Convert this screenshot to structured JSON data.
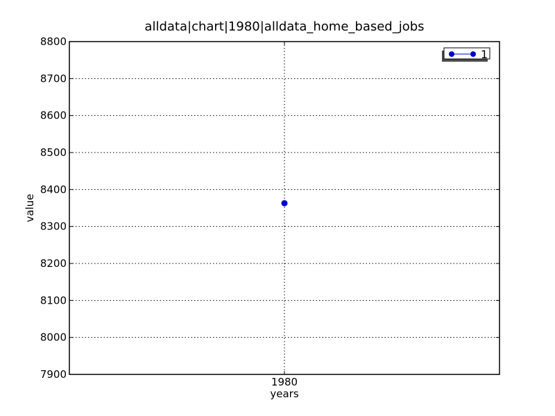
{
  "chart_data": {
    "type": "line",
    "title": "alldata|chart|1980|alldata_home_based_jobs",
    "xlabel": "years",
    "ylabel": "value",
    "x_ticks": [
      "1980"
    ],
    "ylim": [
      7900,
      8800
    ],
    "y_ticks": [
      7900,
      8000,
      8100,
      8200,
      8300,
      8400,
      8500,
      8600,
      8700,
      8800
    ],
    "grid": true,
    "legend_position": "top-right",
    "series": [
      {
        "name": "1",
        "x": [
          "1980"
        ],
        "values": [
          8363
        ],
        "color": "#0000cc",
        "marker": "circle"
      }
    ]
  }
}
